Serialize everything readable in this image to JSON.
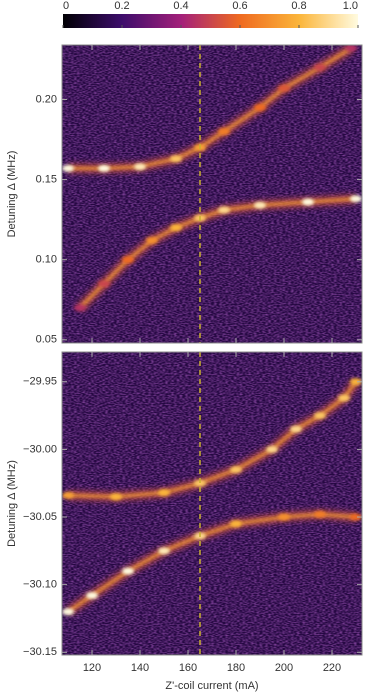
{
  "chart_data": {
    "type": "heatmap",
    "colormap": [
      "#000004",
      "#3d0d6b",
      "#a3207a",
      "#ef6a20",
      "#fbb53a",
      "#fffbe0"
    ],
    "colorbar": {
      "lim": [
        0,
        1
      ],
      "ticks": [
        0,
        0.2,
        0.4,
        0.6,
        0.8,
        {
          "value": 1,
          "label": "1.0"
        }
      ]
    },
    "xlabel": "Z'-coil current (mA)",
    "xlim": [
      107.5,
      232.5
    ],
    "xticks": [
      120,
      140,
      160,
      180,
      200,
      220
    ],
    "marker_x": 165,
    "marker_color": "#c8b030",
    "panels": [
      {
        "ylabel": "Detuning Δ (MHz)",
        "ylim": [
          0.048,
          0.234
        ],
        "yticks": [
          0.05,
          {
            "value": 0.1,
            "label": "0.10"
          },
          0.15,
          {
            "value": 0.2,
            "label": "0.20"
          }
        ],
        "series": [
          {
            "x": [
              110,
              125,
              140,
              155,
              165,
              175,
              190,
              200,
              215,
              228
            ],
            "y": [
              0.157,
              0.157,
              0.158,
              0.163,
              0.17,
              0.18,
              0.195,
              0.207,
              0.22,
              0.232
            ],
            "intensity": [
              1,
              1,
              0.95,
              0.85,
              0.75,
              0.65,
              0.6,
              0.55,
              0.5,
              0.45
            ]
          },
          {
            "x": [
              115,
              125,
              135,
              145,
              155,
              165,
              175,
              190,
              210,
              230
            ],
            "y": [
              0.07,
              0.085,
              0.1,
              0.112,
              0.12,
              0.126,
              0.131,
              0.134,
              0.136,
              0.138
            ],
            "intensity": [
              0.45,
              0.5,
              0.6,
              0.7,
              0.8,
              0.85,
              0.9,
              0.95,
              1,
              1
            ]
          }
        ]
      },
      {
        "ylabel": "Detuning Δ (MHz)",
        "ylim": [
          -30.152,
          -29.928
        ],
        "yticks": [
          {
            "value": -29.95,
            "label": "−29.95"
          },
          {
            "value": -30,
            "label": "−30.00"
          },
          {
            "value": -30.05,
            "label": "−30.05"
          },
          {
            "value": -30.1,
            "label": "−30.10"
          },
          {
            "value": -30.15,
            "label": "−30.15"
          }
        ],
        "series": [
          {
            "x": [
              110,
              130,
              150,
              165,
              180,
              195,
              205,
              215,
              225,
              230
            ],
            "y": [
              -30.034,
              -30.035,
              -30.032,
              -30.025,
              -30.015,
              -30,
              -29.985,
              -29.975,
              -29.962,
              -29.95
            ],
            "intensity": [
              0.75,
              0.8,
              0.8,
              0.85,
              0.85,
              0.9,
              0.9,
              0.85,
              0.85,
              0.8
            ]
          },
          {
            "x": [
              110,
              120,
              135,
              150,
              165,
              180,
              200,
              215,
              230
            ],
            "y": [
              -30.12,
              -30.108,
              -30.09,
              -30.075,
              -30.064,
              -30.055,
              -30.05,
              -30.048,
              -30.05
            ],
            "intensity": [
              1,
              1,
              1,
              0.95,
              0.9,
              0.8,
              0.7,
              0.65,
              0.6
            ]
          }
        ]
      }
    ]
  }
}
